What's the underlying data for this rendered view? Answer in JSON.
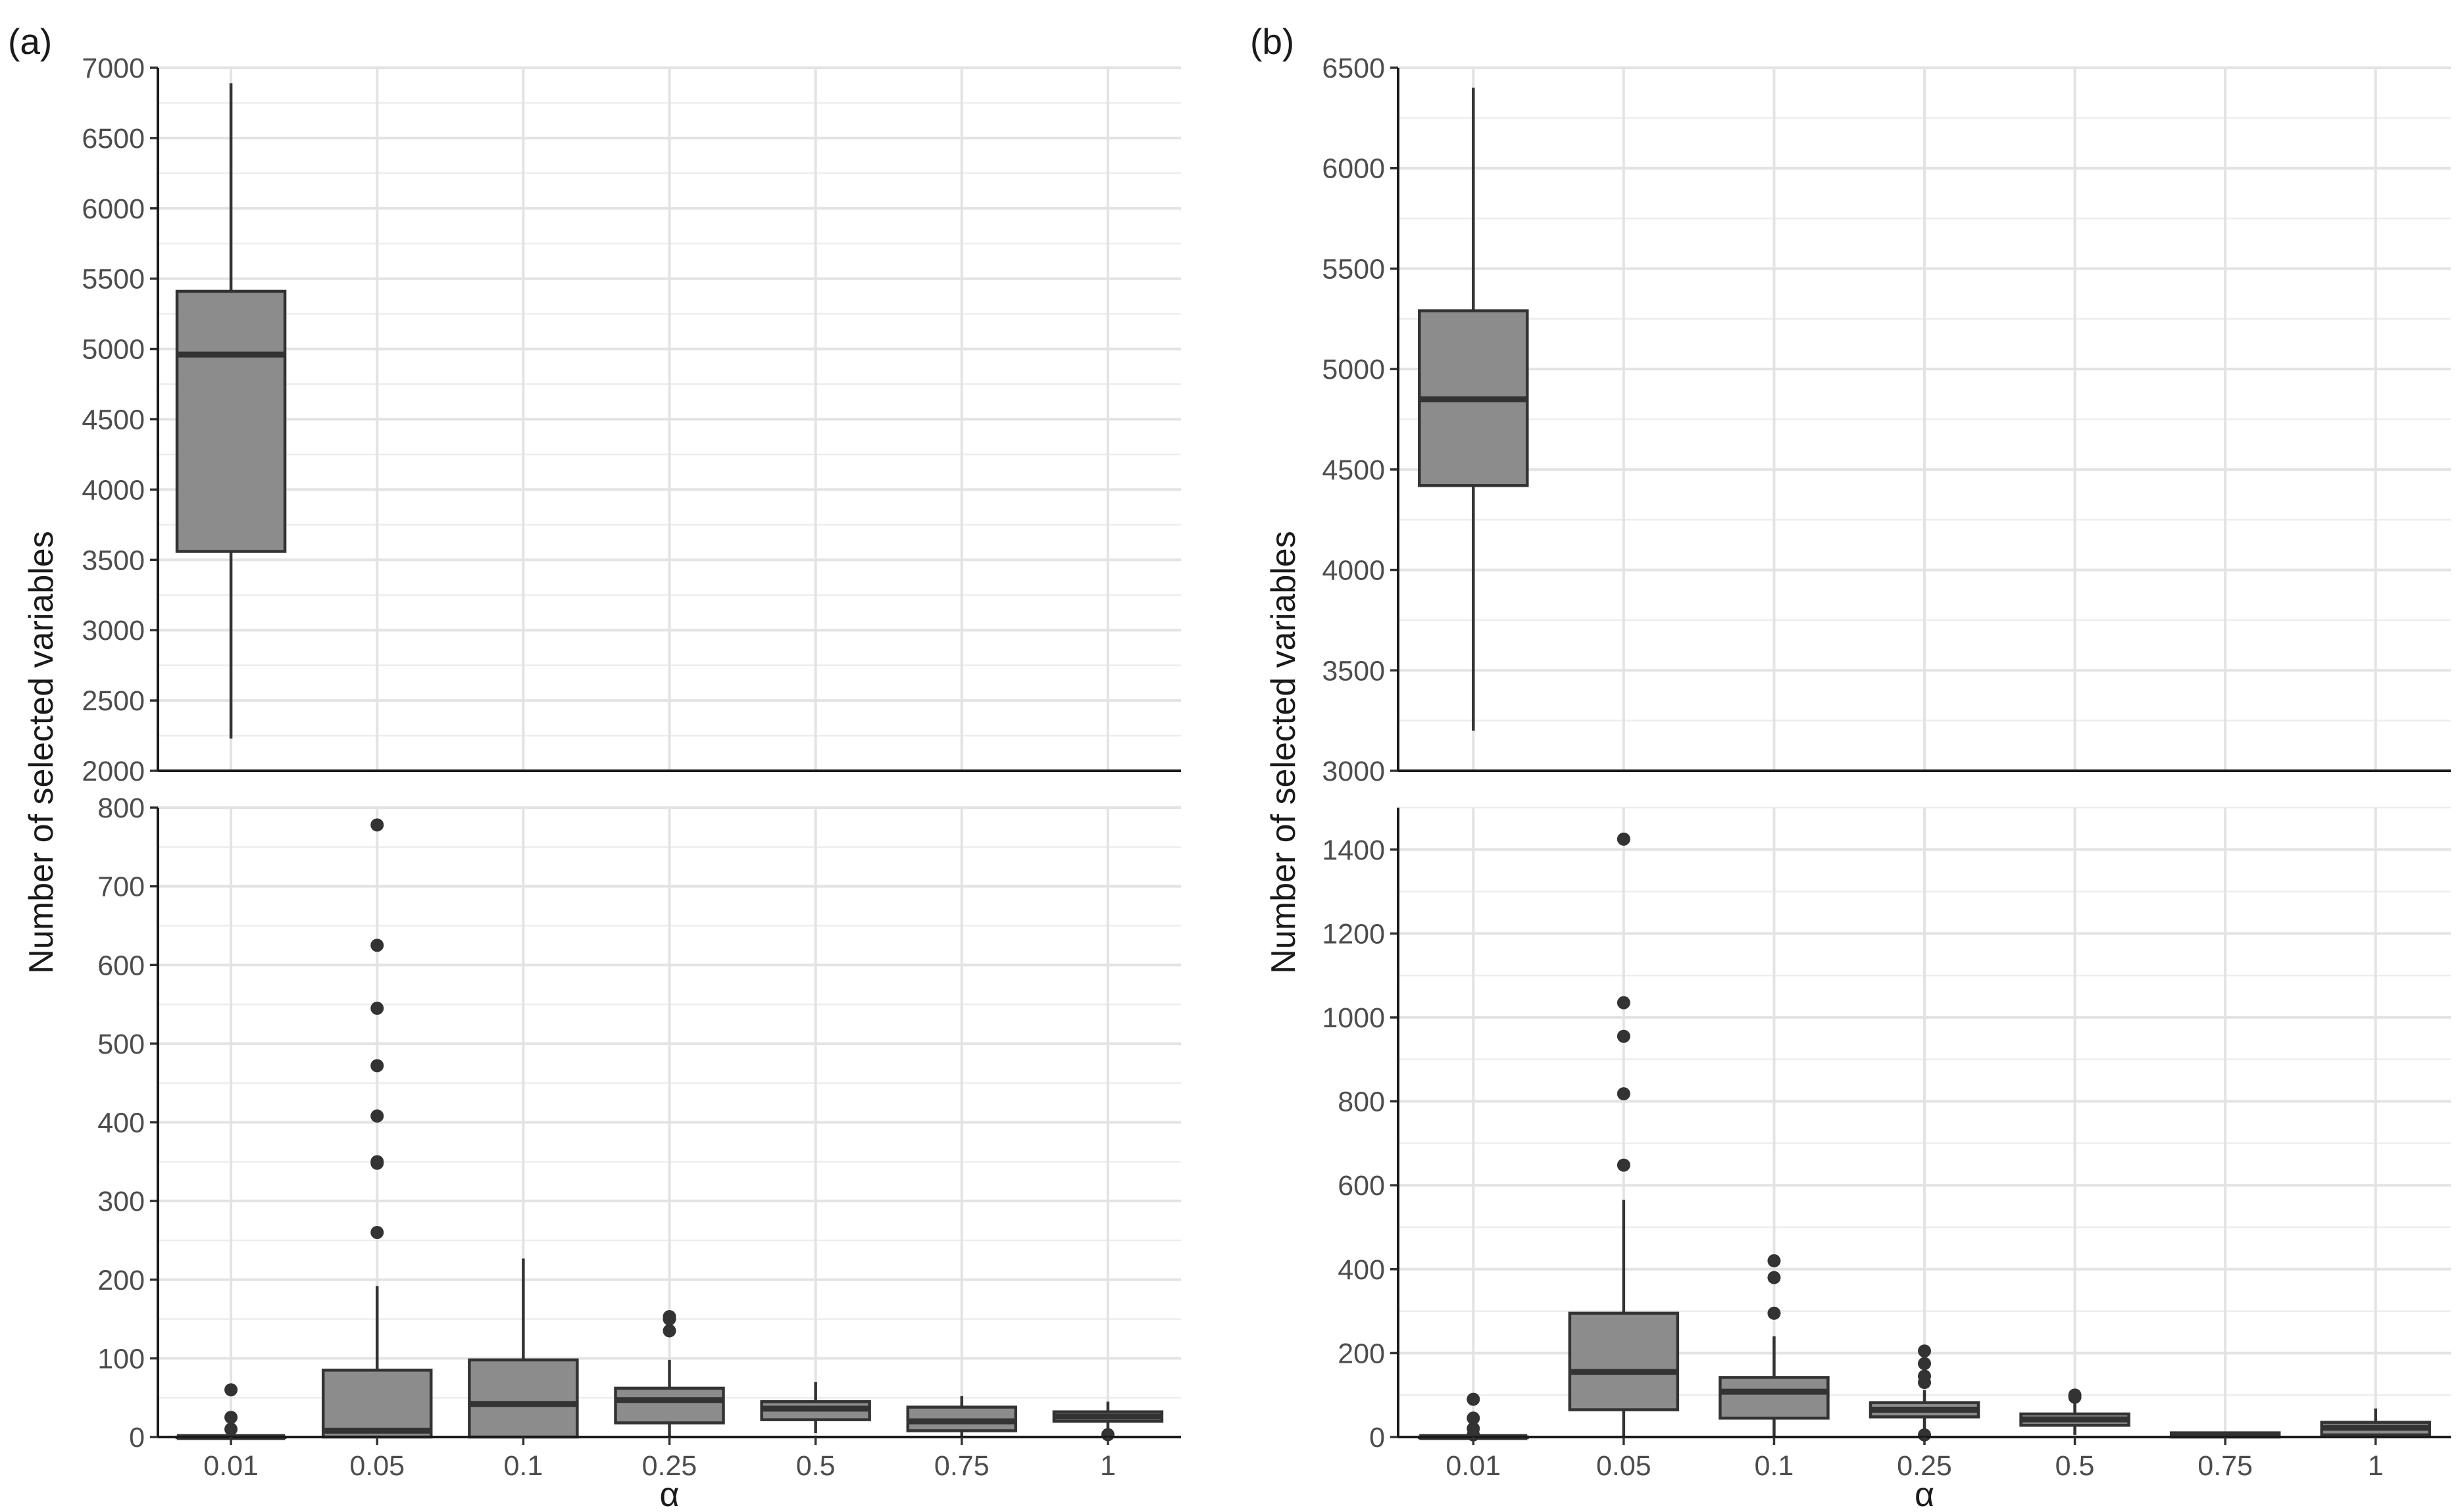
{
  "chart_data": [
    {
      "type": "boxplot",
      "panel_label": "(a)",
      "xlabel": "α",
      "ylabel": "Number of selected variables",
      "categories": [
        "0.01",
        "0.05",
        "0.1",
        "0.25",
        "0.5",
        "0.75",
        "1"
      ],
      "segments": [
        {
          "name": "upper",
          "ylim": [
            2000,
            7000
          ],
          "yticks": [
            "2000",
            "2500",
            "3000",
            "3500",
            "4000",
            "4500",
            "5000",
            "5500",
            "6000",
            "6500",
            "7000"
          ],
          "boxes": [
            {
              "category": "0.01",
              "q1": 3560,
              "median": 4960,
              "q3": 5410,
              "whisker_low": 2230,
              "whisker_high": 6890,
              "outliers": []
            }
          ]
        },
        {
          "name": "lower",
          "ylim": [
            0,
            800
          ],
          "yticks": [
            "0",
            "100",
            "200",
            "300",
            "400",
            "500",
            "600",
            "700",
            "800"
          ],
          "boxes": [
            {
              "category": "0.01",
              "q1": 0,
              "median": 0,
              "q3": 0,
              "whisker_low": 0,
              "whisker_high": 0,
              "outliers": [
                60,
                25,
                10
              ]
            },
            {
              "category": "0.05",
              "q1": 0,
              "median": 8,
              "q3": 85,
              "whisker_low": 0,
              "whisker_high": 192,
              "outliers": [
                260,
                348,
                350,
                408,
                472,
                545,
                625,
                778
              ]
            },
            {
              "category": "0.1",
              "q1": 0,
              "median": 42,
              "q3": 98,
              "whisker_low": 0,
              "whisker_high": 227,
              "outliers": []
            },
            {
              "category": "0.25",
              "q1": 18,
              "median": 47,
              "q3": 62,
              "whisker_low": 0,
              "whisker_high": 98,
              "outliers": [
                135,
                150,
                153
              ]
            },
            {
              "category": "0.5",
              "q1": 22,
              "median": 36,
              "q3": 45,
              "whisker_low": 5,
              "whisker_high": 70,
              "outliers": []
            },
            {
              "category": "0.75",
              "q1": 8,
              "median": 20,
              "q3": 38,
              "whisker_low": 0,
              "whisker_high": 52,
              "outliers": []
            },
            {
              "category": "1",
              "q1": 20,
              "median": 26,
              "q3": 32,
              "whisker_low": 5,
              "whisker_high": 45,
              "outliers": [
                3
              ]
            }
          ]
        }
      ]
    },
    {
      "type": "boxplot",
      "panel_label": "(b)",
      "xlabel": "α",
      "ylabel": "Number of selected variables",
      "categories": [
        "0.01",
        "0.05",
        "0.1",
        "0.25",
        "0.5",
        "0.75",
        "1"
      ],
      "segments": [
        {
          "name": "upper",
          "ylim": [
            3000,
            6500
          ],
          "yticks": [
            "3000",
            "3500",
            "4000",
            "4500",
            "5000",
            "5500",
            "6000",
            "6500"
          ],
          "boxes": [
            {
              "category": "0.01",
              "q1": 4420,
              "median": 4850,
              "q3": 5290,
              "whisker_low": 3200,
              "whisker_high": 6400,
              "outliers": []
            }
          ]
        },
        {
          "name": "lower",
          "ylim": [
            0,
            1500
          ],
          "yticks": [
            "0",
            "200",
            "400",
            "600",
            "800",
            "1000",
            "1200",
            "1400"
          ],
          "boxes": [
            {
              "category": "0.01",
              "q1": 0,
              "median": 0,
              "q3": 0,
              "whisker_low": 0,
              "whisker_high": 0,
              "outliers": [
                90,
                45,
                20,
                5
              ]
            },
            {
              "category": "0.05",
              "q1": 65,
              "median": 155,
              "q3": 295,
              "whisker_low": 0,
              "whisker_high": 565,
              "outliers": [
                648,
                818,
                955,
                1035,
                1425
              ]
            },
            {
              "category": "0.1",
              "q1": 45,
              "median": 108,
              "q3": 142,
              "whisker_low": 0,
              "whisker_high": 240,
              "outliers": [
                295,
                380,
                420
              ]
            },
            {
              "category": "0.25",
              "q1": 48,
              "median": 65,
              "q3": 82,
              "whisker_low": 5,
              "whisker_high": 112,
              "outliers": [
                130,
                145,
                175,
                205,
                5
              ]
            },
            {
              "category": "0.5",
              "q1": 28,
              "median": 42,
              "q3": 55,
              "whisker_low": 5,
              "whisker_high": 90,
              "outliers": [
                95,
                100
              ]
            },
            {
              "category": "0.75",
              "q1": 0,
              "median": 5,
              "q3": 10,
              "whisker_low": 0,
              "whisker_high": 12,
              "outliers": []
            },
            {
              "category": "1",
              "q1": 5,
              "median": 22,
              "q3": 35,
              "whisker_low": 0,
              "whisker_high": 68,
              "outliers": []
            }
          ]
        }
      ]
    }
  ]
}
